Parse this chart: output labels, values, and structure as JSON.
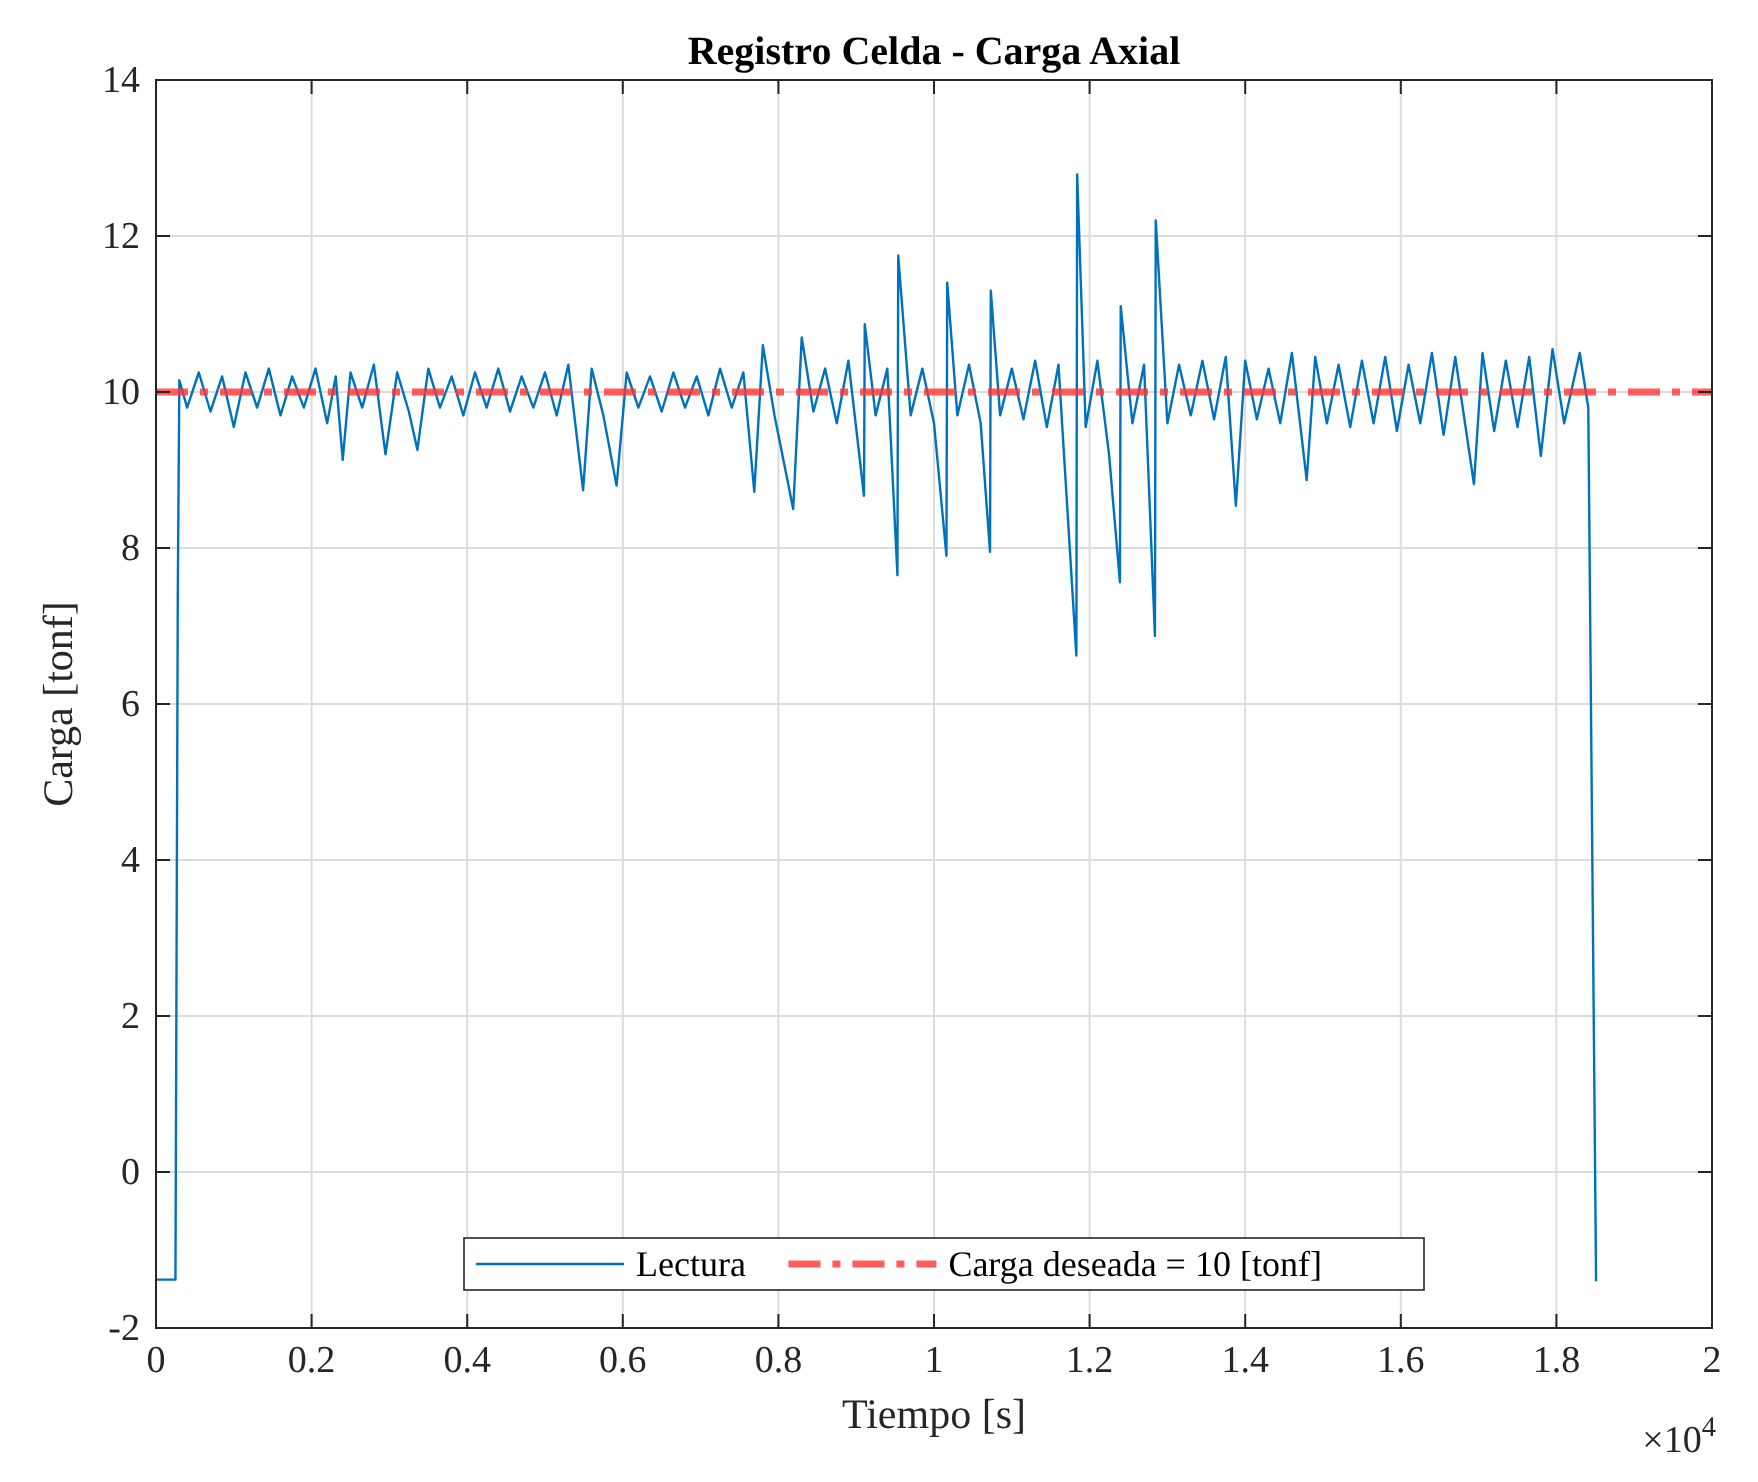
{
  "chart_data": {
    "type": "line",
    "title": "Registro Celda - Carga Axial",
    "xlabel": "Tiempo [s]",
    "ylabel": "Carga [tonf]",
    "annotations": [
      "×10$^{4}$"
    ],
    "xlim": [
      0,
      2
    ],
    "xticks": [
      0,
      0.2,
      0.4,
      0.6,
      0.8,
      1,
      1.2,
      1.4,
      1.6,
      1.8,
      2
    ],
    "ylim": [
      -2,
      14
    ],
    "yticks": [
      -2,
      0,
      2,
      4,
      6,
      8,
      10,
      12,
      14
    ],
    "grid": true,
    "legend": "bottom",
    "series": [
      {
        "name": "Lectura",
        "color": "#0072bd",
        "line_style": "solid",
        "x": [
          0,
          0.025,
          0.028,
          0.03,
          0.04,
          0.055,
          0.07,
          0.085,
          0.1,
          0.115,
          0.13,
          0.145,
          0.16,
          0.175,
          0.19,
          0.205,
          0.22,
          0.231,
          0.24,
          0.25,
          0.265,
          0.28,
          0.295,
          0.31,
          0.325,
          0.336,
          0.35,
          0.365,
          0.38,
          0.395,
          0.41,
          0.425,
          0.44,
          0.455,
          0.47,
          0.485,
          0.5,
          0.515,
          0.53,
          0.549,
          0.56,
          0.575,
          0.592,
          0.605,
          0.62,
          0.635,
          0.65,
          0.665,
          0.68,
          0.695,
          0.71,
          0.725,
          0.74,
          0.755,
          0.769,
          0.78,
          0.795,
          0.819,
          0.83,
          0.845,
          0.86,
          0.875,
          0.89,
          0.91,
          0.911,
          0.925,
          0.94,
          0.953,
          0.954,
          0.97,
          0.985,
          1,
          1.016,
          1.017,
          1.03,
          1.045,
          1.06,
          1.072,
          1.073,
          1.085,
          1.1,
          1.115,
          1.13,
          1.145,
          1.16,
          1.183,
          1.184,
          1.195,
          1.21,
          1.225,
          1.239,
          1.24,
          1.255,
          1.27,
          1.284,
          1.285,
          1.3,
          1.315,
          1.33,
          1.345,
          1.36,
          1.375,
          1.388,
          1.4,
          1.415,
          1.43,
          1.445,
          1.46,
          1.479,
          1.49,
          1.505,
          1.52,
          1.535,
          1.55,
          1.565,
          1.58,
          1.595,
          1.61,
          1.625,
          1.64,
          1.655,
          1.67,
          1.694,
          1.705,
          1.72,
          1.735,
          1.75,
          1.765,
          1.78,
          1.795,
          1.81,
          1.83,
          1.841,
          1.851
        ],
        "values": [
          -1.38,
          -1.38,
          7.4,
          10.15,
          9.8,
          10.25,
          9.75,
          10.2,
          9.55,
          10.25,
          9.8,
          10.3,
          9.7,
          10.2,
          9.8,
          10.3,
          9.6,
          10.2,
          9.13,
          10.25,
          9.8,
          10.35,
          9.2,
          10.25,
          9.75,
          9.26,
          10.3,
          9.8,
          10.2,
          9.7,
          10.25,
          9.8,
          10.3,
          9.75,
          10.2,
          9.8,
          10.25,
          9.7,
          10.35,
          8.74,
          10.3,
          9.7,
          8.8,
          10.25,
          9.8,
          10.2,
          9.75,
          10.25,
          9.8,
          10.2,
          9.7,
          10.3,
          9.8,
          10.25,
          8.72,
          10.6,
          9.7,
          8.5,
          10.7,
          9.75,
          10.3,
          9.6,
          10.4,
          8.67,
          10.87,
          9.7,
          10.3,
          7.65,
          11.75,
          9.7,
          10.3,
          9.6,
          7.9,
          11.4,
          9.7,
          10.35,
          9.6,
          7.95,
          11.3,
          9.7,
          10.3,
          9.65,
          10.4,
          9.55,
          10.35,
          6.62,
          12.79,
          9.55,
          10.4,
          9.2,
          7.56,
          11.1,
          9.6,
          10.35,
          6.87,
          12.2,
          9.6,
          10.35,
          9.7,
          10.4,
          9.65,
          10.45,
          8.54,
          10.4,
          9.65,
          10.3,
          9.6,
          10.5,
          8.87,
          10.45,
          9.6,
          10.35,
          9.55,
          10.4,
          9.6,
          10.45,
          9.5,
          10.35,
          9.6,
          10.5,
          9.45,
          10.45,
          8.82,
          10.5,
          9.5,
          10.4,
          9.55,
          10.45,
          9.18,
          10.55,
          9.6,
          10.5,
          9.8,
          -1.4
        ]
      },
      {
        "name": "Carga deseada = 10 [tonf]",
        "color": "#ff3333",
        "line_style": "dashed",
        "x": [
          0,
          2
        ],
        "values": [
          10,
          10
        ]
      }
    ]
  }
}
